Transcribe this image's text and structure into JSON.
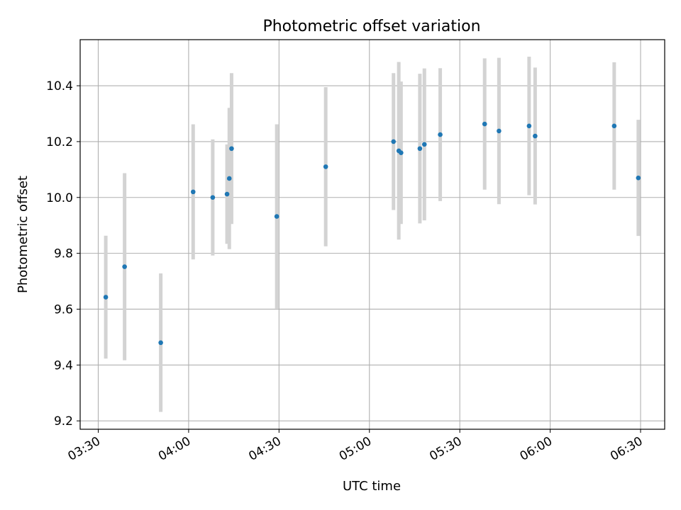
{
  "chart_data": {
    "type": "scatter",
    "title": "Photometric offset variation",
    "xlabel": "UTC time",
    "ylabel": "Photometric offset",
    "x_unit": "minutes",
    "xlim": [
      "03:24",
      "06:38"
    ],
    "ylim": [
      9.17,
      10.565
    ],
    "x_ticks": [
      "03:30",
      "04:00",
      "04:30",
      "05:00",
      "05:30",
      "06:00",
      "06:30"
    ],
    "y_ticks": [
      "9.2",
      "9.4",
      "9.6",
      "9.8",
      "10.0",
      "10.2",
      "10.4"
    ],
    "grid": true,
    "colors": {
      "point": "#1f77b4",
      "errorbar": "#d3d3d3",
      "grid": "#b0b0b0"
    },
    "points": [
      {
        "t": "03:32:30",
        "y": 9.643,
        "yerr": 0.22
      },
      {
        "t": "03:38:45",
        "y": 9.752,
        "yerr": 0.335
      },
      {
        "t": "03:50:45",
        "y": 9.48,
        "yerr": 0.248
      },
      {
        "t": "04:01:30",
        "y": 10.02,
        "yerr": 0.242
      },
      {
        "t": "04:08:00",
        "y": 10.0,
        "yerr": 0.208
      },
      {
        "t": "04:12:45",
        "y": 10.012,
        "yerr": 0.178
      },
      {
        "t": "04:13:30",
        "y": 10.068,
        "yerr": 0.253
      },
      {
        "t": "04:14:15",
        "y": 10.175,
        "yerr": 0.27
      },
      {
        "t": "04:29:15",
        "y": 9.932,
        "yerr": 0.33
      },
      {
        "t": "04:45:30",
        "y": 10.11,
        "yerr": 0.285
      },
      {
        "t": "05:08:00",
        "y": 10.2,
        "yerr": 0.245
      },
      {
        "t": "05:09:45",
        "y": 10.167,
        "yerr": 0.318
      },
      {
        "t": "05:10:30",
        "y": 10.16,
        "yerr": 0.255
      },
      {
        "t": "05:16:45",
        "y": 10.175,
        "yerr": 0.268
      },
      {
        "t": "05:18:15",
        "y": 10.19,
        "yerr": 0.272
      },
      {
        "t": "05:23:30",
        "y": 10.225,
        "yerr": 0.238
      },
      {
        "t": "05:38:15",
        "y": 10.263,
        "yerr": 0.235
      },
      {
        "t": "05:43:00",
        "y": 10.238,
        "yerr": 0.262
      },
      {
        "t": "05:53:00",
        "y": 10.256,
        "yerr": 0.248
      },
      {
        "t": "05:55:00",
        "y": 10.22,
        "yerr": 0.245
      },
      {
        "t": "06:21:15",
        "y": 10.256,
        "yerr": 0.228
      },
      {
        "t": "06:29:15",
        "y": 10.07,
        "yerr": 0.208
      }
    ]
  }
}
